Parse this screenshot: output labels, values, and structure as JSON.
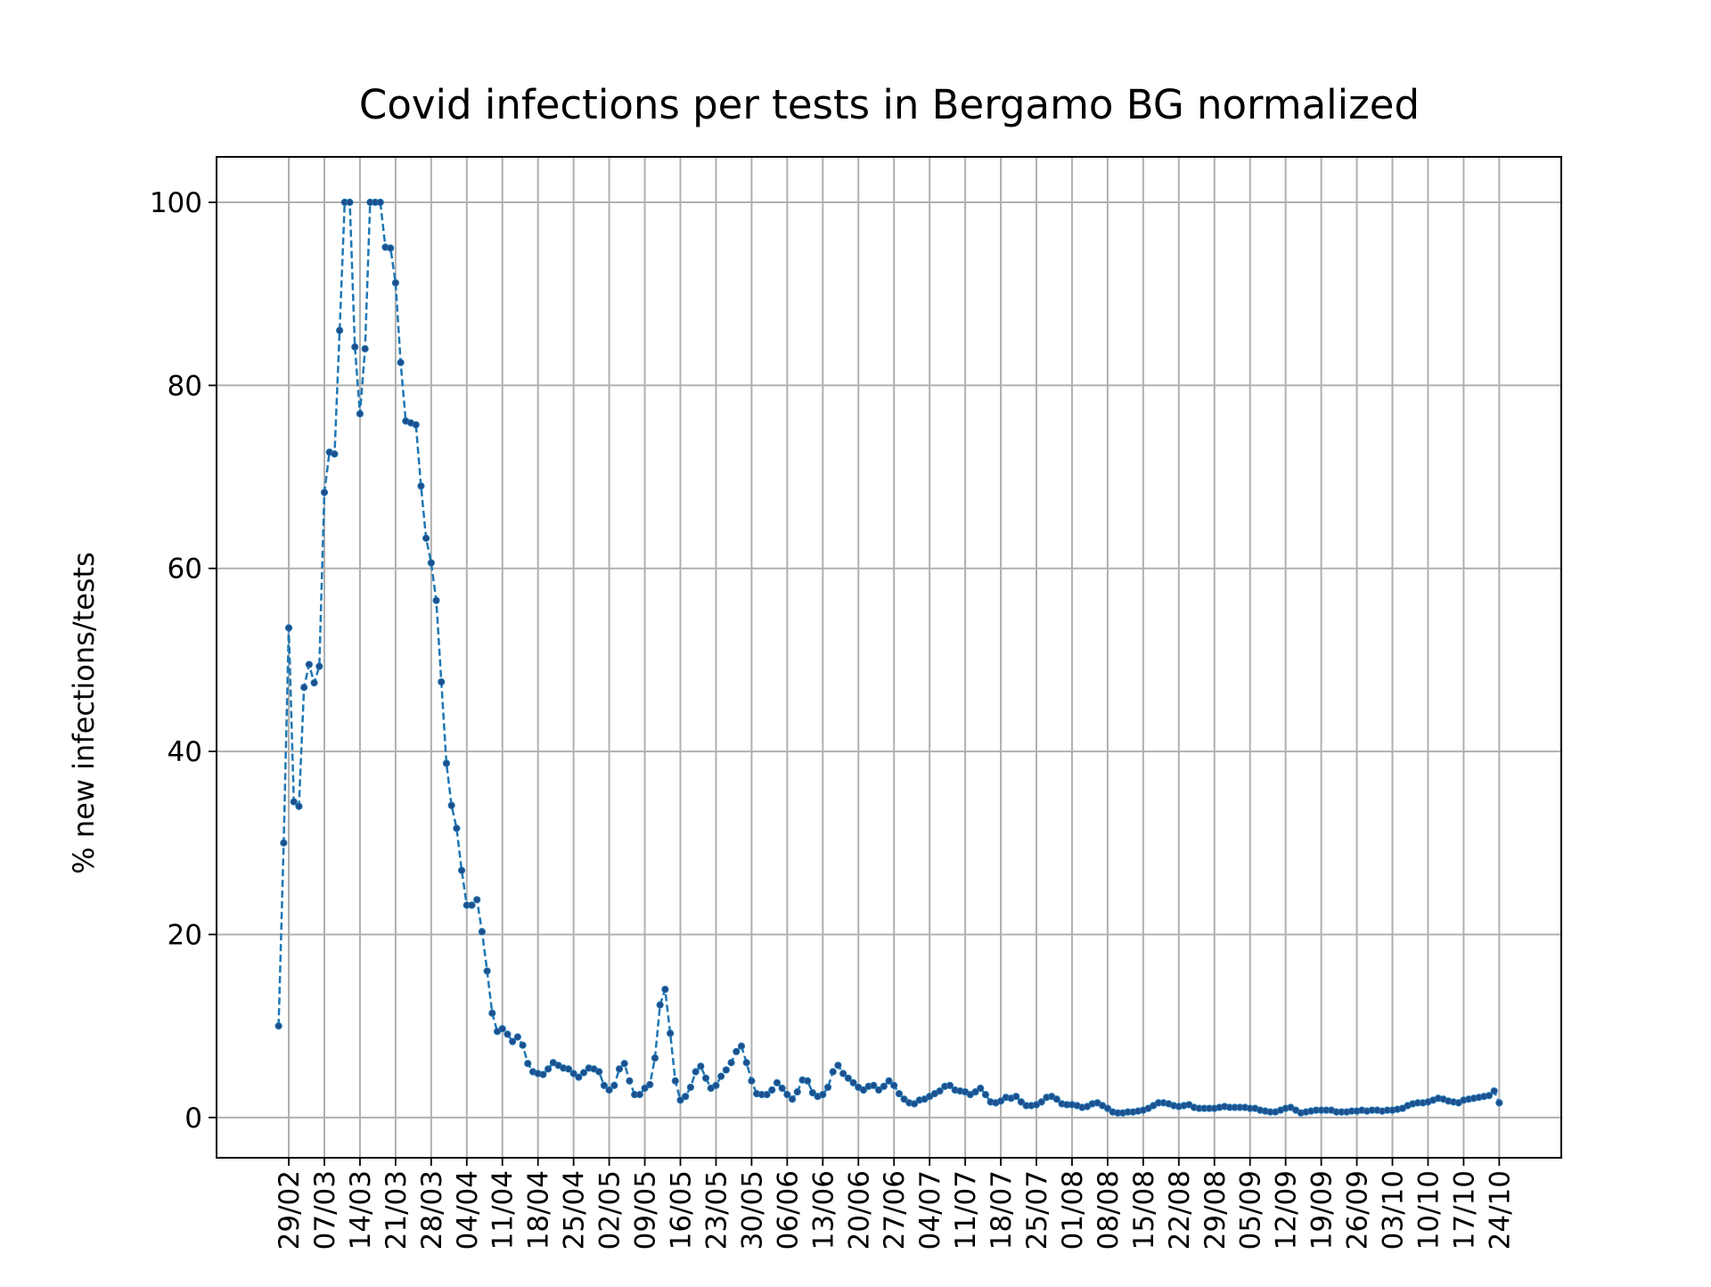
{
  "chart_data": {
    "type": "line",
    "title": "Covid infections per tests in Bergamo BG normalized",
    "y_label": "% new infections/tests",
    "categories": [
      null,
      null,
      "29/02",
      null,
      null,
      null,
      null,
      null,
      null,
      "07/03",
      null,
      null,
      null,
      null,
      null,
      null,
      "14/03",
      null,
      null,
      null,
      null,
      null,
      null,
      "21/03",
      null,
      null,
      null,
      null,
      null,
      null,
      "28/03",
      null,
      null,
      null,
      null,
      null,
      null,
      "04/04",
      null,
      null,
      null,
      null,
      null,
      null,
      "11/04",
      null,
      null,
      null,
      null,
      null,
      null,
      "18/04",
      null,
      null,
      null,
      null,
      null,
      null,
      "25/04",
      null,
      null,
      null,
      null,
      null,
      null,
      "02/05",
      null,
      null,
      null,
      null,
      null,
      null,
      "09/05",
      null,
      null,
      null,
      null,
      null,
      null,
      "16/05",
      null,
      null,
      null,
      null,
      null,
      null,
      "23/05",
      null,
      null,
      null,
      null,
      null,
      null,
      "30/05",
      null,
      null,
      null,
      null,
      null,
      null,
      "06/06",
      null,
      null,
      null,
      null,
      null,
      null,
      "13/06",
      null,
      null,
      null,
      null,
      null,
      null,
      "20/06",
      null,
      null,
      null,
      null,
      null,
      null,
      "27/06",
      null,
      null,
      null,
      null,
      null,
      null,
      "04/07",
      null,
      null,
      null,
      null,
      null,
      null,
      "11/07",
      null,
      null,
      null,
      null,
      null,
      null,
      "18/07",
      null,
      null,
      null,
      null,
      null,
      null,
      "25/07",
      null,
      null,
      null,
      null,
      null,
      null,
      "01/08",
      null,
      null,
      null,
      null,
      null,
      null,
      "08/08",
      null,
      null,
      null,
      null,
      null,
      null,
      "15/08",
      null,
      null,
      null,
      null,
      null,
      null,
      "22/08",
      null,
      null,
      null,
      null,
      null,
      null,
      "29/08",
      null,
      null,
      null,
      null,
      null,
      null,
      "05/09",
      null,
      null,
      null,
      null,
      null,
      null,
      "12/09",
      null,
      null,
      null,
      null,
      null,
      null,
      "19/09",
      null,
      null,
      null,
      null,
      null,
      null,
      "26/09",
      null,
      null,
      null,
      null,
      null,
      null,
      "03/10",
      null,
      null,
      null,
      null,
      null,
      null,
      "10/10",
      null,
      null,
      null,
      null,
      null,
      null,
      "17/10",
      null,
      null,
      null,
      null,
      null,
      null,
      "24/10"
    ],
    "series": [
      {
        "color": "#1f77b4",
        "marker_color": "#1f4e8c",
        "values": [
          10,
          30,
          53.5,
          34.5,
          34,
          47,
          49.5,
          47.5,
          49.3,
          68.3,
          72.7,
          72.5,
          86,
          100,
          100,
          84.2,
          76.9,
          84,
          100,
          100,
          100,
          95.1,
          95,
          91.2,
          82.5,
          76.1,
          75.9,
          75.7,
          69,
          63.3,
          60.6,
          56.5,
          47.6,
          38.7,
          34.1,
          31.6,
          27,
          23.2,
          23.2,
          23.8,
          20.3,
          16,
          11.4,
          9.4,
          9.7,
          9.1,
          8.3,
          8.8,
          7.9,
          5.9,
          5,
          4.8,
          4.7,
          5.3,
          6,
          5.7,
          5.4,
          5.3,
          4.8,
          4.4,
          4.9,
          5.4,
          5.3,
          5,
          3.5,
          3,
          3.5,
          5.3,
          5.9,
          4,
          2.5,
          2.5,
          3.2,
          3.6,
          6.5,
          12.3,
          14,
          9.2,
          4,
          1.9,
          2.3,
          3.3,
          5,
          5.6,
          4.3,
          3.2,
          3.5,
          4.5,
          5.2,
          6,
          7.2,
          7.8,
          6,
          4,
          2.6,
          2.5,
          2.5,
          3,
          3.8,
          3.2,
          2.5,
          2,
          2.8,
          4.1,
          4,
          2.7,
          2.3,
          2.5,
          3.3,
          5,
          5.7,
          4.8,
          4.3,
          3.8,
          3.3,
          3,
          3.4,
          3.5,
          3,
          3.4,
          4,
          3.5,
          2.6,
          2,
          1.6,
          1.5,
          1.9,
          2,
          2.3,
          2.6,
          2.9,
          3.4,
          3.5,
          3,
          2.9,
          2.8,
          2.5,
          2.8,
          3.2,
          2.5,
          1.7,
          1.6,
          1.8,
          2.2,
          2.1,
          2.3,
          1.7,
          1.3,
          1.3,
          1.4,
          1.7,
          2.2,
          2.3,
          2,
          1.5,
          1.4,
          1.4,
          1.3,
          1.1,
          1.2,
          1.5,
          1.6,
          1.3,
          1,
          0.6,
          0.5,
          0.5,
          0.6,
          0.6,
          0.7,
          0.8,
          1,
          1.3,
          1.6,
          1.6,
          1.5,
          1.3,
          1.2,
          1.3,
          1.4,
          1.1,
          1,
          1,
          1,
          1,
          1.1,
          1.2,
          1.1,
          1.1,
          1.1,
          1.1,
          1,
          1,
          0.8,
          0.7,
          0.6,
          0.6,
          0.8,
          1,
          1.1,
          0.8,
          0.5,
          0.6,
          0.7,
          0.8,
          0.8,
          0.8,
          0.8,
          0.6,
          0.6,
          0.6,
          0.7,
          0.7,
          0.8,
          0.7,
          0.8,
          0.8,
          0.7,
          0.8,
          0.8,
          0.9,
          1,
          1.3,
          1.5,
          1.6,
          1.6,
          1.7,
          1.9,
          2.1,
          2,
          1.8,
          1.7,
          1.6,
          1.9,
          2,
          2.1,
          2.2,
          2.3,
          2.4,
          2.9,
          1.6
        ]
      }
    ],
    "ylim": [
      -4.4,
      104.97
    ],
    "yticks": [
      0,
      20,
      40,
      60,
      80,
      100
    ],
    "grid": true
  }
}
